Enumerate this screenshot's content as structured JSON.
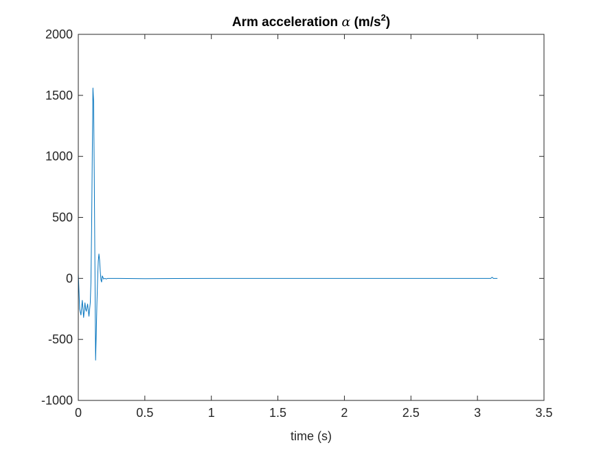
{
  "chart_data": {
    "type": "line",
    "title": {
      "prefix": "Arm acceleration ",
      "symbol": "α",
      "suffix_before_sup": " (m/s",
      "superscript": "2",
      "suffix_after_sup": ")"
    },
    "xlabel": "time (s)",
    "ylabel": "",
    "xlim": [
      0,
      3.5
    ],
    "ylim": [
      -1000,
      2000
    ],
    "xticks": [
      0,
      0.5,
      1,
      1.5,
      2,
      2.5,
      3,
      3.5
    ],
    "xtick_labels": [
      "0",
      "0.5",
      "1",
      "1.5",
      "2",
      "2.5",
      "3",
      "3.5"
    ],
    "yticks": [
      -1000,
      -500,
      0,
      500,
      1000,
      1500,
      2000
    ],
    "ytick_labels": [
      "-1000",
      "-500",
      "0",
      "500",
      "1000",
      "1500",
      "2000"
    ],
    "grid": false,
    "box": true,
    "colors": {
      "line": "#0072BD",
      "axes": "#262626"
    },
    "series": [
      {
        "x": [
          0,
          0.005,
          0.01,
          0.02,
          0.03,
          0.04,
          0.05,
          0.055,
          0.06,
          0.065,
          0.07,
          0.08,
          0.09,
          0.095,
          0.1,
          0.105,
          0.11,
          0.115,
          0.12,
          0.125,
          0.13,
          0.135,
          0.14,
          0.145,
          0.15,
          0.155,
          0.16,
          0.165,
          0.17,
          0.175,
          0.18,
          0.185,
          0.19,
          0.2,
          0.21,
          0.22,
          0.24,
          0.3,
          0.5,
          1,
          1.5,
          2,
          2.5,
          3,
          3.1,
          3.11,
          3.12,
          3.15
        ],
        "y": [
          40,
          -100,
          -250,
          -300,
          -180,
          -320,
          -200,
          -250,
          -270,
          -240,
          -210,
          -310,
          -200,
          -30,
          400,
          1000,
          1560,
          1450,
          850,
          100,
          -670,
          -450,
          -200,
          -10,
          140,
          200,
          150,
          60,
          -10,
          -30,
          20,
          10,
          -5,
          0,
          -5,
          0,
          0,
          0,
          -2,
          0,
          0,
          0,
          0,
          0,
          0,
          10,
          0,
          0
        ]
      }
    ]
  }
}
